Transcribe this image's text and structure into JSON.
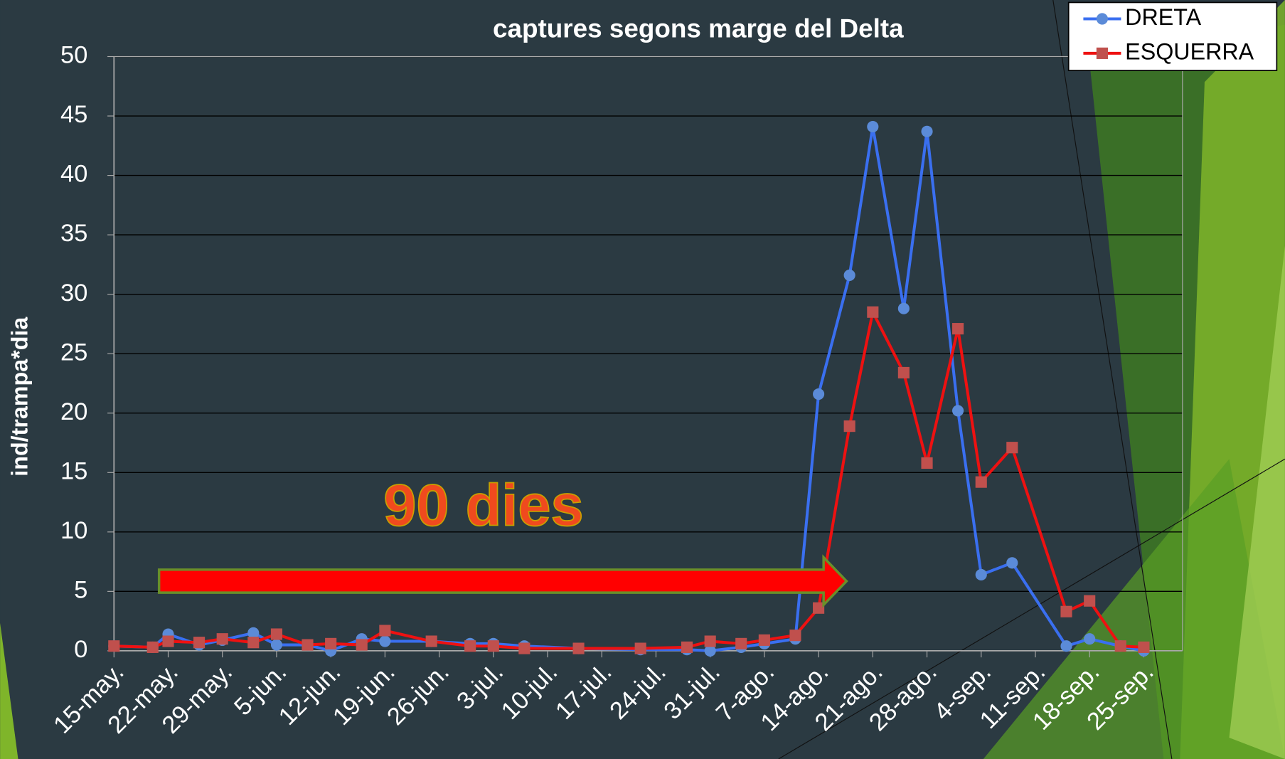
{
  "chart_data": {
    "type": "line",
    "title": "captures segons marge del Delta",
    "y_label": "ind/trampa*dia",
    "annotation": "90 dies",
    "x": [
      0,
      5,
      7,
      11,
      14,
      18,
      21,
      25,
      28,
      32,
      35,
      41,
      46,
      49,
      53,
      60,
      68,
      74,
      77,
      81,
      84,
      88,
      91,
      95,
      98,
      102,
      105,
      109,
      112,
      116,
      123,
      126,
      130,
      133
    ],
    "xlim": [
      0,
      138
    ],
    "xticks": [
      {
        "value": 0,
        "label": "15-may."
      },
      {
        "value": 7,
        "label": "22-may."
      },
      {
        "value": 14,
        "label": "29-may."
      },
      {
        "value": 21,
        "label": "5-jun."
      },
      {
        "value": 28,
        "label": "12-jun."
      },
      {
        "value": 35,
        "label": "19-jun."
      },
      {
        "value": 42,
        "label": "26-jun."
      },
      {
        "value": 49,
        "label": "3-jul."
      },
      {
        "value": 56,
        "label": "10-jul."
      },
      {
        "value": 63,
        "label": "17-jul."
      },
      {
        "value": 70,
        "label": "24-jul."
      },
      {
        "value": 77,
        "label": "31-jul."
      },
      {
        "value": 84,
        "label": "7-ago."
      },
      {
        "value": 91,
        "label": "14-ago."
      },
      {
        "value": 98,
        "label": "21-ago."
      },
      {
        "value": 105,
        "label": "28-ago."
      },
      {
        "value": 112,
        "label": "4-sep."
      },
      {
        "value": 119,
        "label": "11-sep."
      },
      {
        "value": 126,
        "label": "18-sep."
      },
      {
        "value": 133,
        "label": "25-sep."
      }
    ],
    "ylim": [
      0,
      50
    ],
    "yticks": [
      0,
      5,
      10,
      15,
      20,
      25,
      30,
      35,
      40,
      45,
      50
    ],
    "grid": true,
    "legend": "top-right",
    "series": [
      {
        "name": "DRETA",
        "color": "#3a6ff0",
        "marker": "circle",
        "values": [
          0.4,
          0.3,
          1.4,
          0.5,
          0.9,
          1.5,
          0.5,
          0.5,
          0,
          1.0,
          0.8,
          0.8,
          0.6,
          0.6,
          0.4,
          0.2,
          0.1,
          0.1,
          0,
          0.3,
          0.6,
          1.0,
          21.6,
          31.6,
          44.1,
          28.8,
          43.7,
          20.2,
          6.4,
          7.4,
          0.4,
          1.0,
          0.4,
          0
        ]
      },
      {
        "name": "ESQUERRA",
        "color": "#ee1111",
        "marker": "square",
        "values": [
          0.4,
          0.3,
          0.8,
          0.7,
          1.0,
          0.7,
          1.4,
          0.5,
          0.6,
          0.5,
          1.7,
          0.8,
          0.4,
          0.4,
          0.2,
          0.2,
          0.2,
          0.3,
          0.8,
          0.6,
          0.9,
          1.3,
          3.6,
          18.9,
          28.5,
          23.4,
          15.8,
          27.1,
          14.2,
          17.1,
          3.3,
          4.2,
          0.4,
          0.3
        ]
      }
    ]
  }
}
